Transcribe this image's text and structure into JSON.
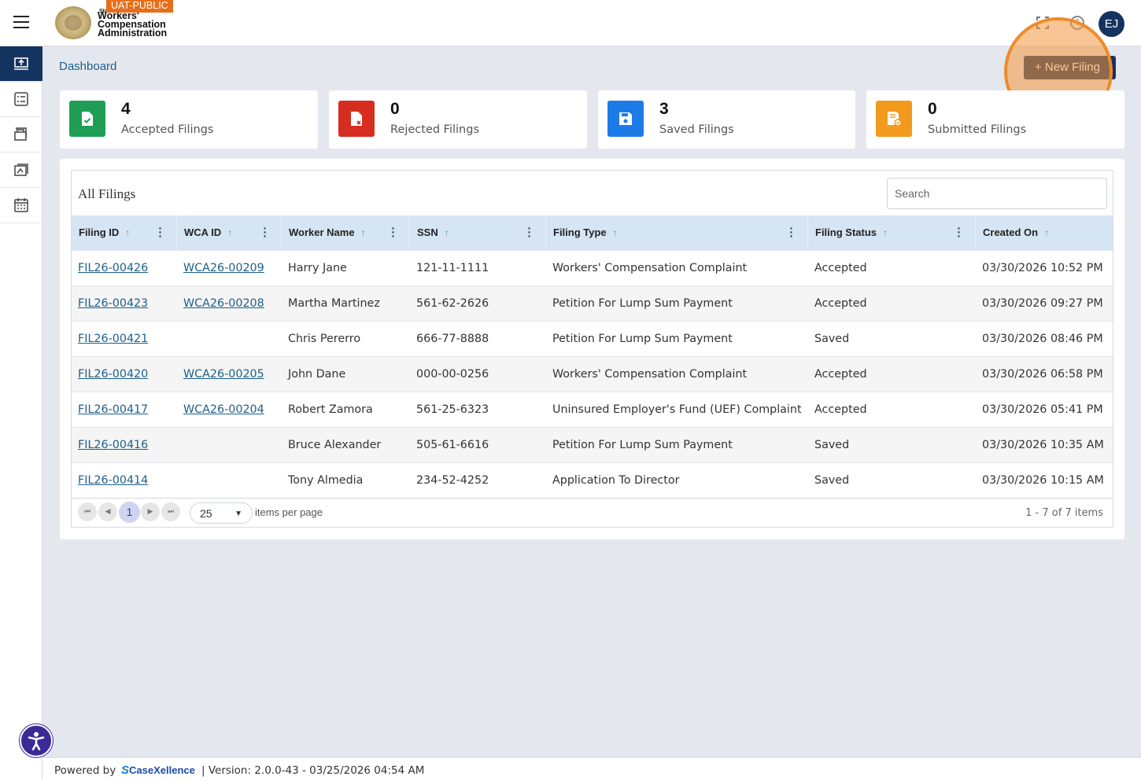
{
  "header": {
    "badge": "UAT-PUBLIC",
    "agency_small": "State",
    "agency_line1": "Workers'",
    "agency_line2": "Compensation",
    "agency_line3": "Administration",
    "help_glyph": "?",
    "avatar_initials": "EJ"
  },
  "sidebar": {
    "items": [
      {
        "icon": "dashboard-upload-icon",
        "active": true
      },
      {
        "icon": "checklist-icon",
        "active": false
      },
      {
        "icon": "briefcase-icon",
        "active": false
      },
      {
        "icon": "documents-icon",
        "active": false
      },
      {
        "icon": "calendar-icon",
        "active": false
      }
    ]
  },
  "breadcrumb": "Dashboard",
  "new_filing_label": "+ New Filing",
  "stats": [
    {
      "count": "4",
      "label": "Accepted Filings",
      "color": "#1f9d55",
      "icon": "file-check-icon"
    },
    {
      "count": "0",
      "label": "Rejected Filings",
      "color": "#d62d20",
      "icon": "file-reject-icon"
    },
    {
      "count": "3",
      "label": "Saved Filings",
      "color": "#1d7be8",
      "icon": "save-icon"
    },
    {
      "count": "0",
      "label": "Submitted Filings",
      "color": "#f39a1e",
      "icon": "file-submitted-icon"
    }
  ],
  "grid": {
    "title": "All Filings",
    "search_placeholder": "Search",
    "columns": [
      "Filing ID",
      "WCA ID",
      "Worker Name",
      "SSN",
      "Filing Type",
      "Filing Status",
      "Created On"
    ],
    "rows": [
      [
        "FIL26-00426",
        "WCA26-00209",
        "Harry Jane",
        "121-11-1111",
        "Workers' Compensation Complaint",
        "Accepted",
        "03/30/2026 10:52 PM"
      ],
      [
        "FIL26-00423",
        "WCA26-00208",
        "Martha Martinez",
        "561-62-2626",
        "Petition For Lump Sum Payment",
        "Accepted",
        "03/30/2026 09:27 PM"
      ],
      [
        "FIL26-00421",
        "",
        "Chris Pererro",
        "666-77-8888",
        "Petition For Lump Sum Payment",
        "Saved",
        "03/30/2026 08:46 PM"
      ],
      [
        "FIL26-00420",
        "WCA26-00205",
        "John Dane",
        "000-00-0256",
        "Workers' Compensation Complaint",
        "Accepted",
        "03/30/2026 06:58 PM"
      ],
      [
        "FIL26-00417",
        "WCA26-00204",
        "Robert Zamora",
        "561-25-6323",
        "Uninsured Employer's Fund (UEF) Complaint",
        "Accepted",
        "03/30/2026 05:41 PM"
      ],
      [
        "FIL26-00416",
        "",
        "Bruce Alexander",
        "505-61-6616",
        "Petition For Lump Sum Payment",
        "Saved",
        "03/30/2026 10:35 AM"
      ],
      [
        "FIL26-00414",
        "",
        "Tony Almedia",
        "234-52-4252",
        "Application To Director",
        "Saved",
        "03/30/2026 10:15 AM"
      ]
    ],
    "pager": {
      "current_page": "1",
      "per_page": "25",
      "per_page_label": "items per page",
      "count_text": "1 - 7 of 7 items"
    }
  },
  "footer": {
    "powered_by": "Powered by",
    "brand": "CaseXellence",
    "version": "|  Version: 2.0.0-43 - 03/25/2026 04:54 AM"
  }
}
